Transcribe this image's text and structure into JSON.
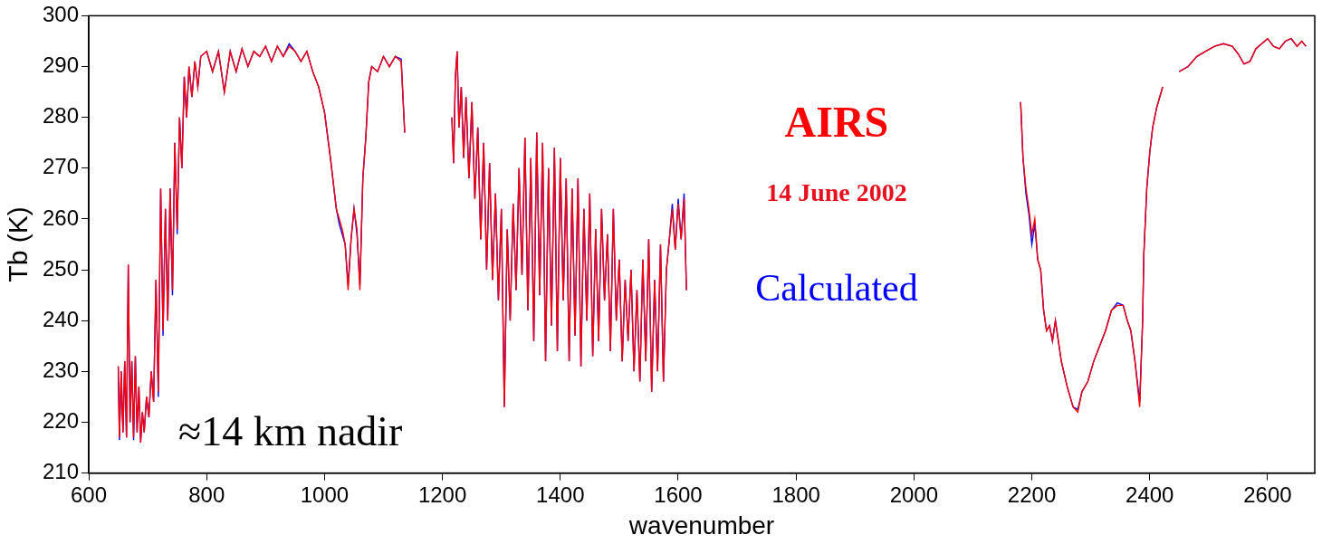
{
  "chart_data": {
    "type": "line",
    "x_label": "wavenumber",
    "y_label": "Tb (K)",
    "annotations": [
      {
        "text": "14 June 2002",
        "color": "#e8101e"
      },
      {
        "text": "≈14 km nadir",
        "color": "#000000"
      }
    ],
    "xlim": [
      600,
      2680
    ],
    "xticks": [
      600,
      800,
      1000,
      1200,
      1400,
      1600,
      1800,
      2000,
      2200,
      2400,
      2600
    ],
    "ylim": [
      210,
      300
    ],
    "yticks": [
      210,
      220,
      230,
      240,
      250,
      260,
      270,
      280,
      290,
      300
    ],
    "grid": false,
    "x": [
      650,
      652,
      655,
      658,
      661,
      664,
      667,
      670,
      673,
      676,
      679,
      682,
      685,
      688,
      691,
      694,
      698,
      702,
      706,
      710,
      714,
      718,
      722,
      726,
      730,
      734,
      738,
      742,
      746,
      750,
      754,
      758,
      762,
      766,
      770,
      775,
      780,
      785,
      790,
      800,
      810,
      820,
      830,
      840,
      850,
      860,
      870,
      880,
      890,
      900,
      910,
      920,
      930,
      940,
      950,
      960,
      970,
      980,
      990,
      1000,
      1010,
      1020,
      1025,
      1030,
      1035,
      1040,
      1045,
      1050,
      1055,
      1060,
      1065,
      1070,
      1075,
      1080,
      1090,
      1100,
      1110,
      1120,
      1130,
      1136,
      1176,
      1216,
      1219,
      1222,
      1225,
      1228,
      1232,
      1236,
      1240,
      1245,
      1250,
      1255,
      1260,
      1265,
      1270,
      1275,
      1280,
      1285,
      1290,
      1295,
      1300,
      1305,
      1310,
      1315,
      1320,
      1325,
      1330,
      1335,
      1340,
      1345,
      1350,
      1355,
      1360,
      1365,
      1370,
      1375,
      1380,
      1385,
      1390,
      1395,
      1400,
      1405,
      1410,
      1415,
      1420,
      1425,
      1430,
      1435,
      1440,
      1445,
      1450,
      1455,
      1460,
      1465,
      1470,
      1475,
      1480,
      1485,
      1490,
      1495,
      1500,
      1505,
      1510,
      1515,
      1520,
      1525,
      1530,
      1535,
      1540,
      1545,
      1550,
      1555,
      1560,
      1565,
      1570,
      1575,
      1580,
      1585,
      1590,
      1595,
      1600,
      1605,
      1610,
      1614,
      1900,
      2181,
      2185,
      2190,
      2195,
      2200,
      2205,
      2210,
      2215,
      2220,
      2225,
      2230,
      2235,
      2240,
      2250,
      2260,
      2270,
      2278,
      2285,
      2295,
      2305,
      2315,
      2325,
      2335,
      2345,
      2355,
      2362,
      2368,
      2375,
      2383,
      2388,
      2390,
      2395,
      2400,
      2405,
      2412,
      2422,
      2435,
      2450,
      2465,
      2480,
      2495,
      2510,
      2525,
      2540,
      2550,
      2560,
      2570,
      2580,
      2590,
      2600,
      2610,
      2620,
      2630,
      2640,
      2650,
      2658,
      2665
    ],
    "series": [
      {
        "name": "AIRS",
        "color": "#ff0000",
        "values": [
          231,
          217,
          230,
          218,
          232,
          217,
          251,
          220,
          232,
          217,
          233,
          218,
          227,
          216,
          222,
          218,
          225,
          221,
          230,
          224,
          248,
          226,
          266,
          238,
          262,
          240,
          266,
          246,
          275,
          258,
          280,
          270,
          288,
          280,
          290,
          284,
          291,
          286,
          292,
          293,
          289,
          293,
          285,
          293,
          289,
          293.5,
          290,
          293,
          292,
          294,
          291,
          294,
          292,
          294,
          293,
          291,
          293,
          289,
          286,
          281,
          272,
          262,
          260,
          258,
          255,
          246,
          256,
          262,
          258,
          246,
          268,
          276,
          287,
          290,
          289,
          292,
          290,
          292,
          291,
          277,
          null,
          280,
          271,
          288,
          293,
          278,
          286,
          272,
          284,
          268,
          283,
          264,
          278,
          256,
          275,
          250,
          271,
          248,
          265,
          244,
          262,
          223,
          258,
          240,
          263,
          246,
          270,
          249,
          276,
          242,
          272,
          236,
          277,
          245,
          275,
          232,
          270,
          239,
          274,
          234,
          272,
          244,
          268,
          232,
          266,
          237,
          268,
          231,
          262,
          240,
          265,
          233,
          258,
          236,
          262,
          244,
          257,
          234,
          262,
          240,
          252,
          232,
          248,
          236,
          250,
          230,
          246,
          228,
          252,
          232,
          256,
          226,
          248,
          230,
          255,
          228,
          250,
          256,
          262,
          254,
          263,
          256,
          264,
          246,
          null,
          283,
          272,
          266,
          262,
          257,
          260,
          252,
          250,
          242,
          238,
          239,
          236,
          240,
          232,
          227,
          223,
          222,
          226,
          228,
          232,
          235,
          238,
          242,
          243,
          243,
          240,
          238,
          232,
          223,
          240,
          253,
          266,
          273,
          278,
          282,
          286,
          null,
          289,
          290,
          292,
          293,
          294,
          294.5,
          294,
          292.5,
          290.5,
          291,
          293.5,
          294.5,
          295.5,
          294,
          293.5,
          295,
          295.5,
          294,
          295,
          294
        ]
      },
      {
        "name": "Calculated",
        "color": "#0000ff",
        "values": [
          231,
          216.5,
          230,
          218,
          232,
          217,
          251,
          220,
          232,
          216.5,
          233,
          218,
          227,
          216,
          222,
          218,
          225,
          221,
          230,
          224,
          248,
          225,
          266,
          237,
          262,
          240,
          266,
          245,
          275,
          257,
          280,
          270,
          288,
          280,
          290,
          284,
          291,
          286,
          292,
          293,
          289,
          293,
          285,
          293,
          289,
          293.5,
          290,
          293,
          292,
          294,
          291,
          294,
          292,
          294.5,
          293,
          291,
          293,
          289,
          286,
          281,
          272,
          262,
          259,
          257,
          255,
          247,
          256,
          262,
          257,
          247,
          268,
          276,
          287,
          290,
          289,
          292,
          290,
          292,
          291.5,
          277,
          null,
          280,
          271,
          288,
          293,
          278,
          286,
          272,
          284,
          268,
          283,
          264,
          278,
          256,
          275,
          250,
          271,
          248,
          265,
          244,
          262,
          223,
          258,
          240,
          263,
          246,
          270,
          249,
          276,
          242,
          272,
          236,
          277,
          245,
          275,
          232,
          270,
          239,
          274,
          234,
          272,
          244,
          268,
          232,
          266,
          237,
          268,
          231,
          262,
          240,
          265,
          233,
          258,
          236,
          262,
          244,
          257,
          234,
          262,
          240,
          252,
          232,
          248,
          236,
          250,
          230,
          246,
          228,
          252,
          232,
          256,
          226,
          248,
          230,
          255,
          228,
          250,
          256,
          263,
          254,
          264,
          256,
          265,
          246,
          null,
          283,
          272,
          265,
          261,
          255,
          259,
          252,
          250,
          242,
          238,
          239,
          236,
          240,
          232,
          227,
          223,
          222.5,
          226,
          228,
          232,
          235,
          238,
          242,
          243.5,
          243,
          240,
          238,
          232,
          224,
          240,
          253,
          266,
          273,
          278,
          282,
          286,
          null,
          289,
          290,
          292,
          293,
          294,
          294.5,
          294,
          292.5,
          290.5,
          291,
          293.5,
          294.5,
          295.5,
          294,
          293.5,
          295,
          295.5,
          294,
          295,
          294
        ]
      }
    ]
  }
}
